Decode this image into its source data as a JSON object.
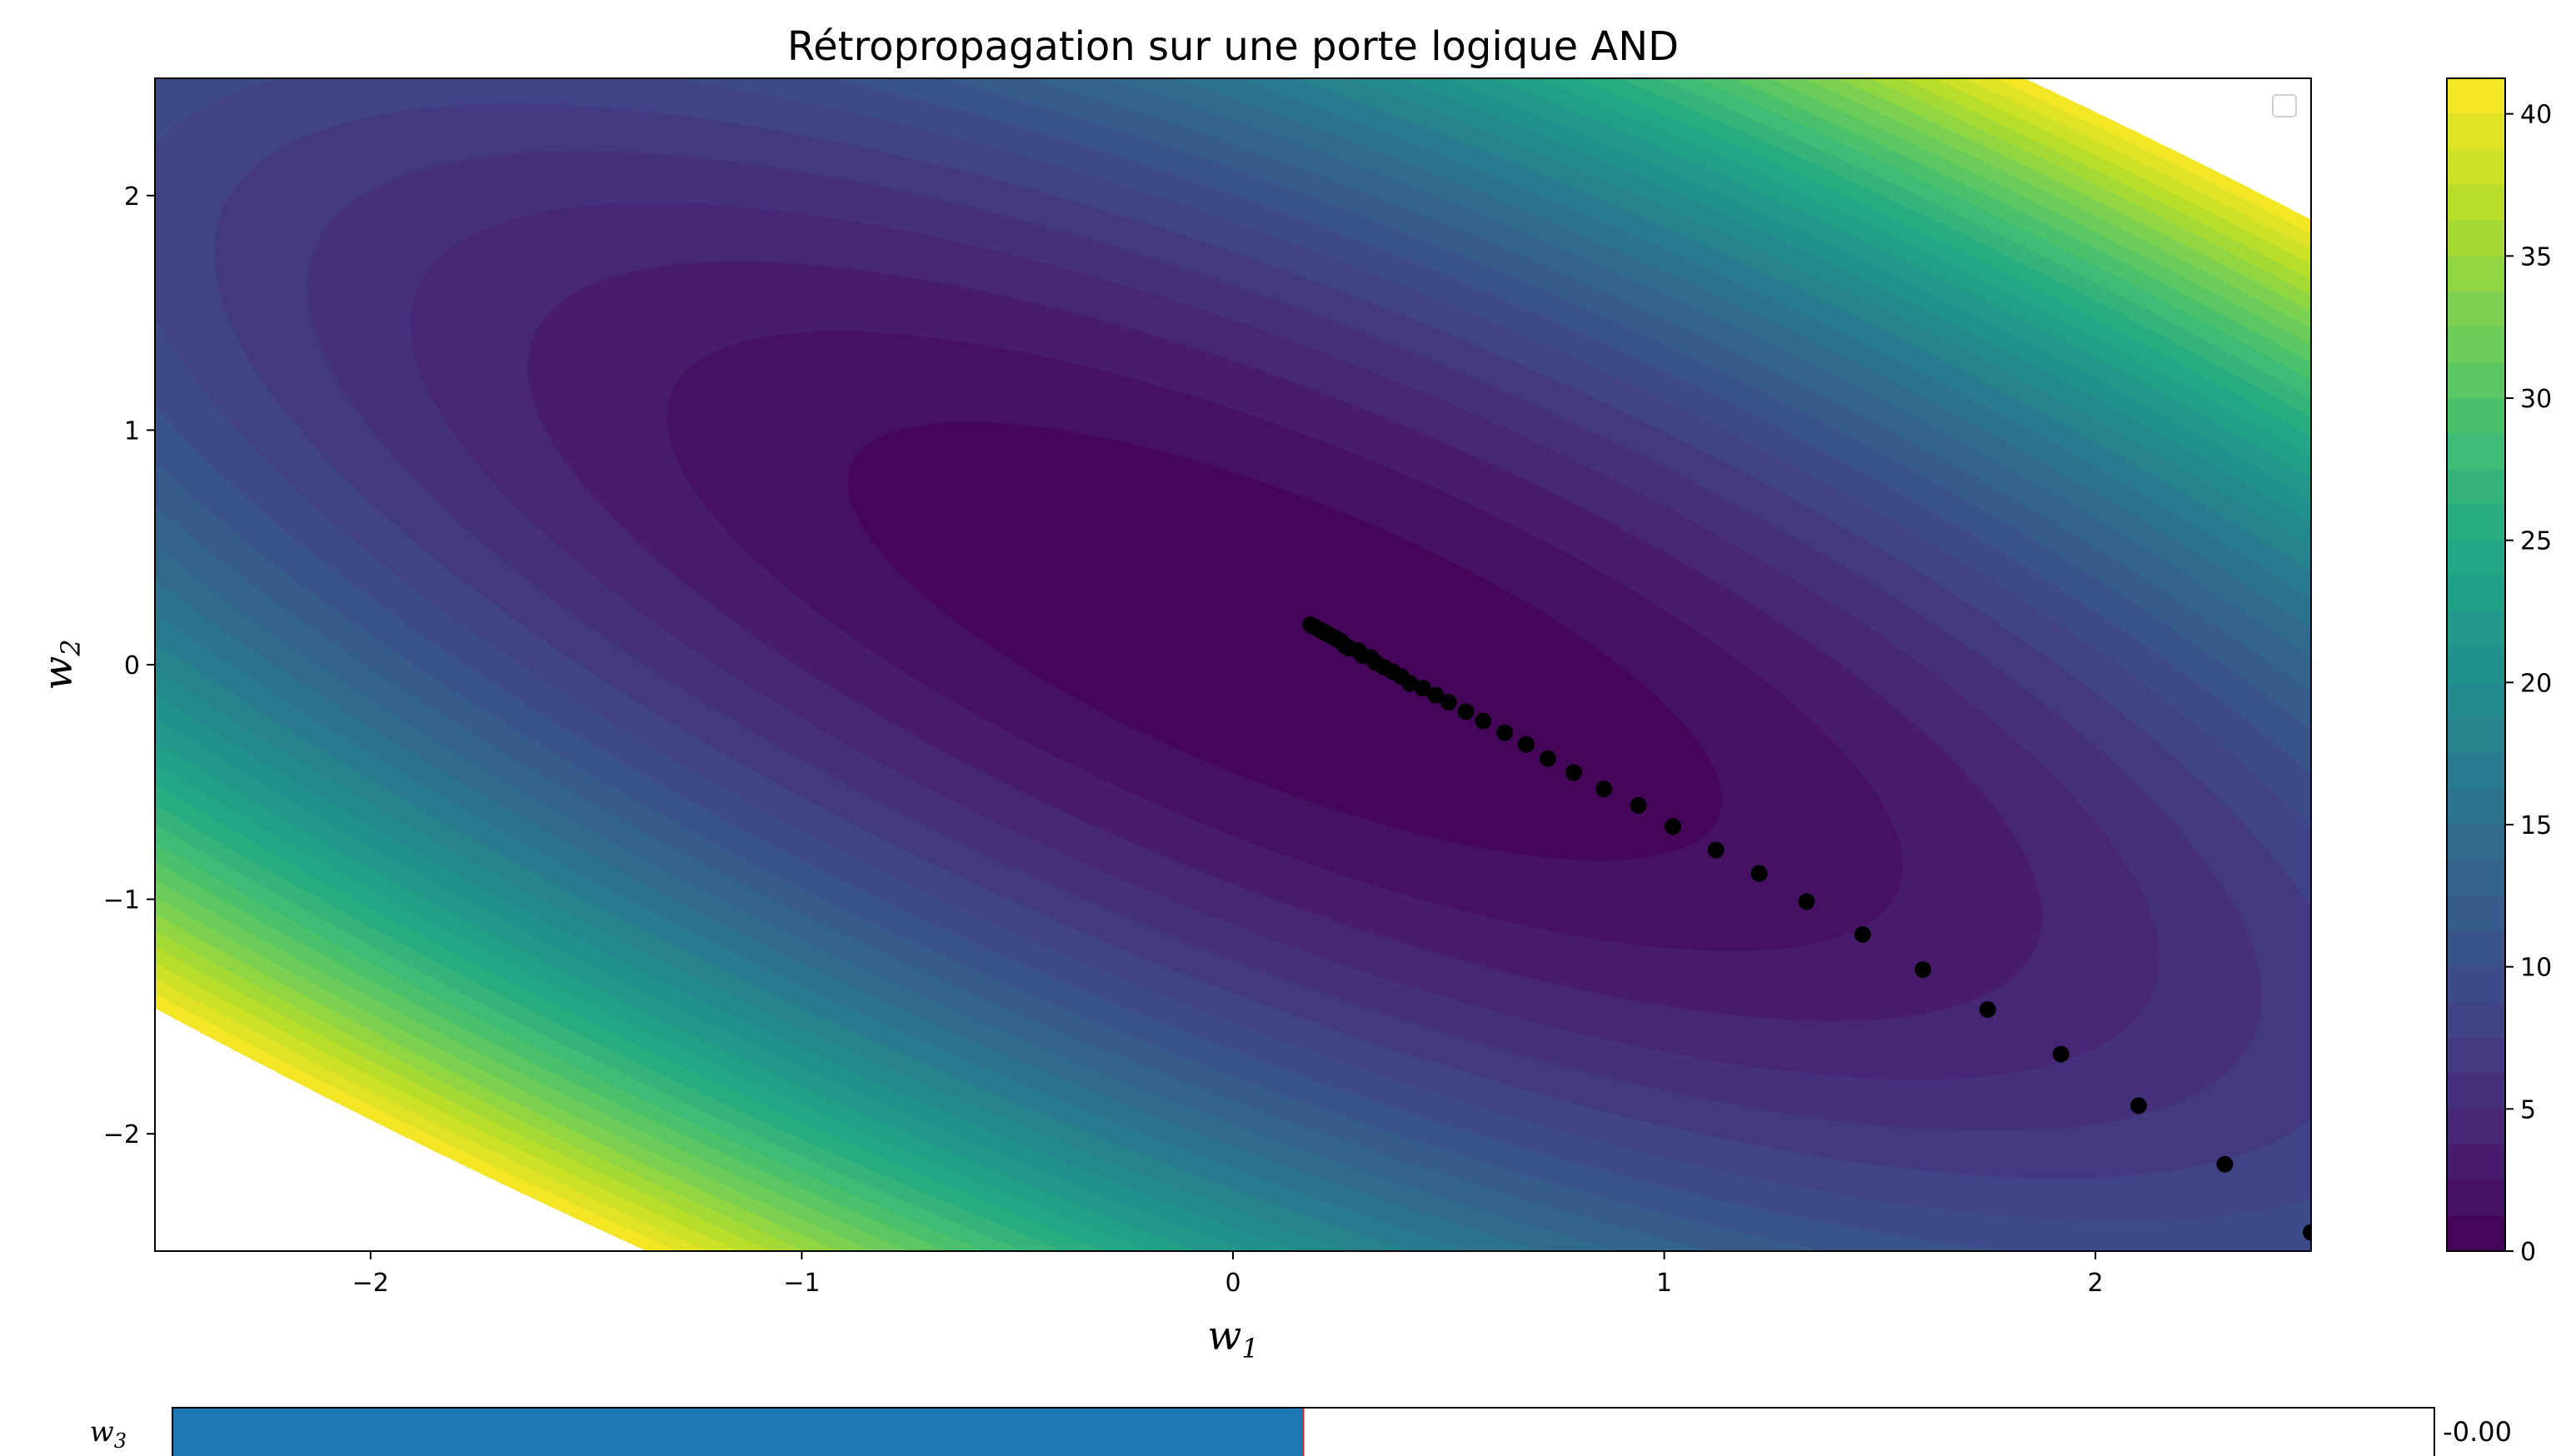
{
  "chart_data": {
    "type": "contour",
    "title": "Rétropropagation sur une porte logique AND",
    "xlabel": "w",
    "xlabel_sub": "1",
    "ylabel": "w",
    "ylabel_sub": "2",
    "xlim": [
      -2.5,
      2.5
    ],
    "ylim": [
      -2.5,
      2.5
    ],
    "xticks": [
      -2,
      -1,
      0,
      1,
      2
    ],
    "yticks": [
      -2,
      -1,
      0,
      1,
      2
    ],
    "xtick_labels": [
      "−2",
      "−1",
      "0",
      "1",
      "2"
    ],
    "ytick_labels": [
      "−2",
      "−1",
      "0",
      "1",
      "2"
    ],
    "colormap": "viridis",
    "colorbar": {
      "min": 0,
      "max": 41.25,
      "ticks": [
        0,
        5,
        10,
        15,
        20,
        25,
        30,
        35,
        40
      ],
      "tick_labels": [
        "0",
        "5",
        "10",
        "15",
        "20",
        "25",
        "30",
        "35",
        "40"
      ],
      "levels": 33
    },
    "surface": {
      "center": [
        0.12,
        0.1
      ],
      "quadratic": {
        "a": 2.55,
        "b": 4.0,
        "c": 3.0
      }
    },
    "points_color": "#000000",
    "points": [
      [
        2.5,
        -2.42
      ],
      [
        2.3,
        -2.13
      ],
      [
        2.1,
        -1.88
      ],
      [
        1.92,
        -1.66
      ],
      [
        1.75,
        -1.47
      ],
      [
        1.6,
        -1.3
      ],
      [
        1.46,
        -1.15
      ],
      [
        1.33,
        -1.01
      ],
      [
        1.22,
        -0.89
      ],
      [
        1.12,
        -0.79
      ],
      [
        1.02,
        -0.69
      ],
      [
        0.94,
        -0.6
      ],
      [
        0.86,
        -0.53
      ],
      [
        0.79,
        -0.46
      ],
      [
        0.73,
        -0.4
      ],
      [
        0.68,
        -0.34
      ],
      [
        0.63,
        -0.29
      ],
      [
        0.58,
        -0.24
      ],
      [
        0.54,
        -0.2
      ],
      [
        0.5,
        -0.16
      ],
      [
        0.47,
        -0.13
      ],
      [
        0.44,
        -0.1
      ],
      [
        0.41,
        -0.08
      ],
      [
        0.39,
        -0.05
      ],
      [
        0.37,
        -0.03
      ],
      [
        0.35,
        -0.01
      ],
      [
        0.33,
        0.01
      ],
      [
        0.32,
        0.03
      ],
      [
        0.3,
        0.04
      ],
      [
        0.29,
        0.06
      ],
      [
        0.27,
        0.07
      ],
      [
        0.26,
        0.08
      ],
      [
        0.25,
        0.1
      ],
      [
        0.24,
        0.11
      ],
      [
        0.23,
        0.12
      ],
      [
        0.22,
        0.13
      ],
      [
        0.21,
        0.14
      ],
      [
        0.2,
        0.15
      ],
      [
        0.19,
        0.16
      ],
      [
        0.18,
        0.17
      ]
    ]
  },
  "slider": {
    "label": "w",
    "label_sub": "3",
    "value_text": "-0.00",
    "fill_fraction": 0.5,
    "fill_color": "#1f77b4",
    "marker_color": "#d62728"
  }
}
